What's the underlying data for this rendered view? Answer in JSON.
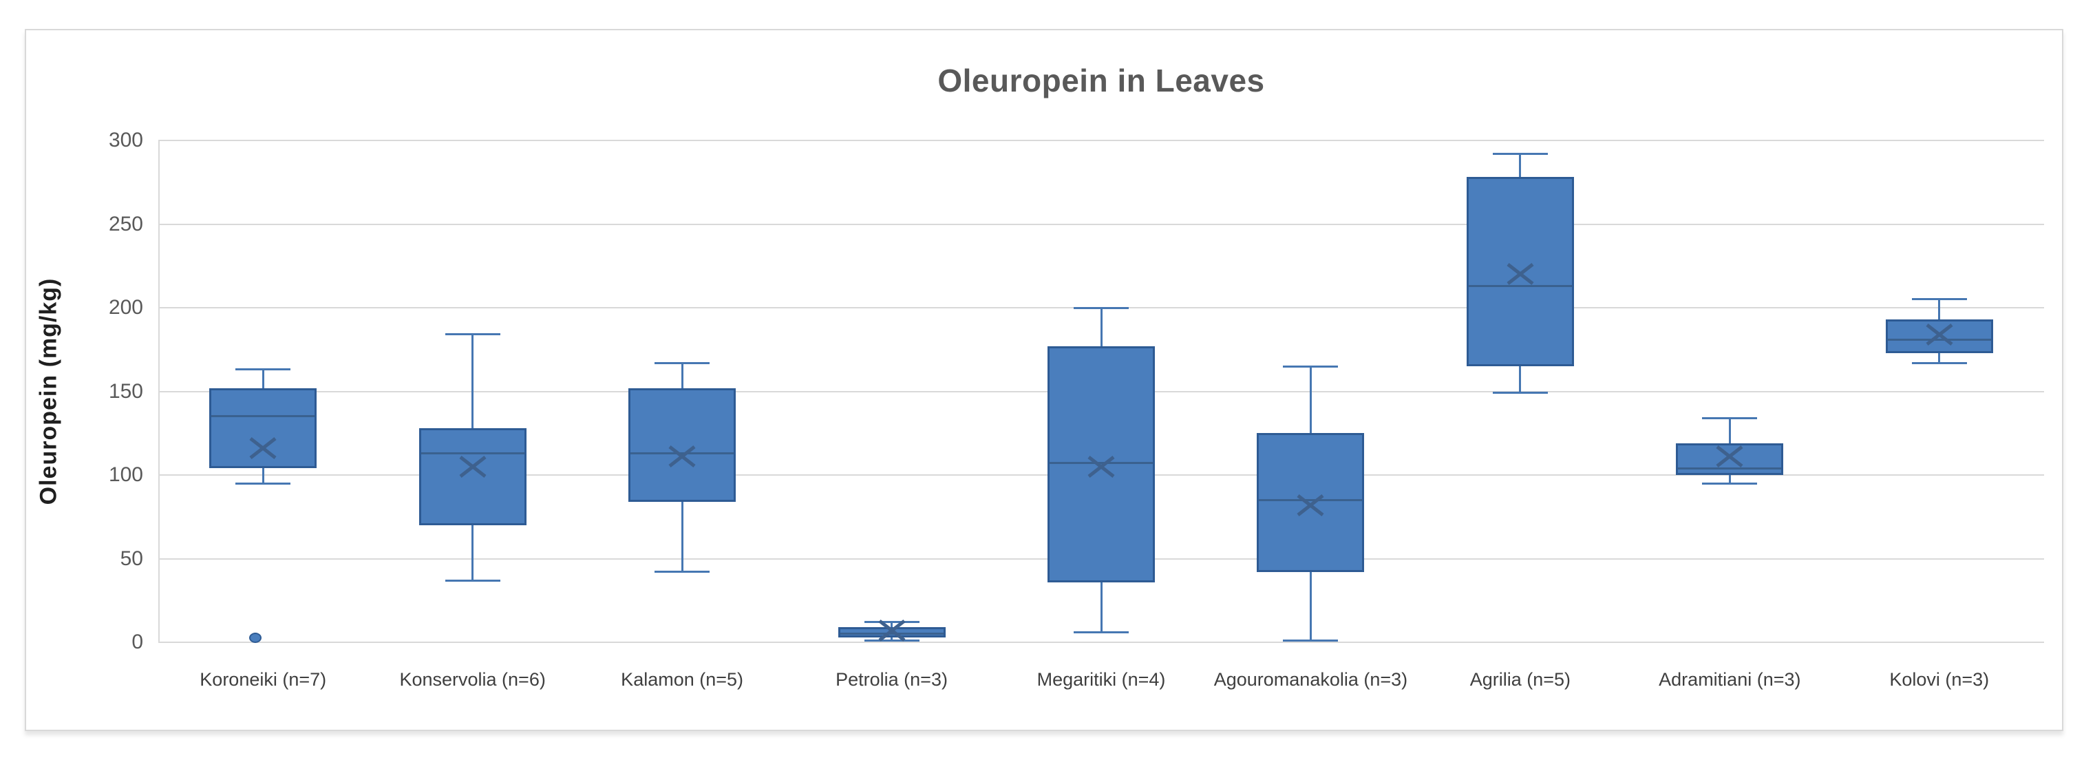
{
  "chart_data": {
    "type": "box",
    "title": "Oleuropein in Leaves",
    "ylabel": "Oleuropein (mg/kg)",
    "ylim": [
      0,
      300
    ],
    "yticks": [
      0,
      50,
      100,
      150,
      200,
      250,
      300
    ],
    "grid": "horizontal",
    "legend_position": "none",
    "categories": [
      "Koroneiki (n=7)",
      "Konservolia (n=6)",
      "Kalamon (n=5)",
      "Petrolia (n=3)",
      "Megaritiki (n=4)",
      "Agouromanakolia (n=3)",
      "Agrilia (n=5)",
      "Adramitiani (n=3)",
      "Kolovi (n=3)"
    ],
    "series": [
      {
        "label": "Koroneiki (n=7)",
        "whisker_low": 95,
        "q1": 104,
        "median": 135,
        "q3": 152,
        "whisker_high": 163,
        "mean": 116,
        "outliers": [
          3
        ]
      },
      {
        "label": "Konservolia (n=6)",
        "whisker_low": 37,
        "q1": 70,
        "median": 113,
        "q3": 128,
        "whisker_high": 184,
        "mean": 105,
        "outliers": []
      },
      {
        "label": "Kalamon (n=5)",
        "whisker_low": 42,
        "q1": 84,
        "median": 113,
        "q3": 152,
        "whisker_high": 167,
        "mean": 111,
        "outliers": []
      },
      {
        "label": "Petrolia (n=3)",
        "whisker_low": 1,
        "q1": 3,
        "median": 5,
        "q3": 9,
        "whisker_high": 12,
        "mean": 7,
        "outliers": []
      },
      {
        "label": "Megaritiki (n=4)",
        "whisker_low": 6,
        "q1": 36,
        "median": 107,
        "q3": 177,
        "whisker_high": 200,
        "mean": 105,
        "outliers": []
      },
      {
        "label": "Agouromanakolia (n=3)",
        "whisker_low": 1,
        "q1": 42,
        "median": 85,
        "q3": 125,
        "whisker_high": 165,
        "mean": 82,
        "outliers": []
      },
      {
        "label": "Agrilia (n=5)",
        "whisker_low": 149,
        "q1": 165,
        "median": 213,
        "q3": 278,
        "whisker_high": 292,
        "mean": 220,
        "outliers": []
      },
      {
        "label": "Adramitiani (n=3)",
        "whisker_low": 95,
        "q1": 100,
        "median": 104,
        "q3": 119,
        "whisker_high": 134,
        "mean": 111,
        "outliers": []
      },
      {
        "label": "Kolovi (n=3)",
        "whisker_low": 167,
        "q1": 173,
        "median": 181,
        "q3": 193,
        "whisker_high": 205,
        "mean": 184,
        "outliers": []
      }
    ],
    "colors": {
      "box_fill": "#4A7EBD",
      "box_border": "#2E5B94",
      "median_line": "#3A618F",
      "whisker": "#4677B2",
      "mean_marker": "#3E618E",
      "outlier_fill": "#4A7EBD",
      "outlier_border": "#2E5B94",
      "gridline": "#D9D9D9",
      "panel_border": "#D9D9D9",
      "title_text": "#595959",
      "tick_text": "#595959",
      "category_text": "#3F3F3F",
      "axis_label_text": "#1F1F1F"
    }
  }
}
